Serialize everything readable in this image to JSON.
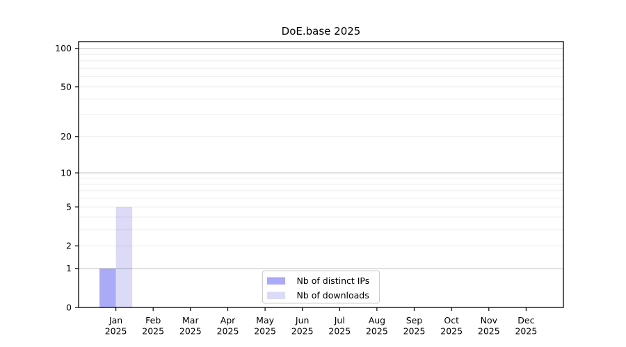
{
  "figure": {
    "title": "DoE.base 2025"
  },
  "chart_data": {
    "type": "bar",
    "title": "DoE.base 2025",
    "categories": [
      "Jan 2025",
      "Feb 2025",
      "Mar 2025",
      "Apr 2025",
      "May 2025",
      "Jun 2025",
      "Jul 2025",
      "Aug 2025",
      "Sep 2025",
      "Oct 2025",
      "Nov 2025",
      "Dec 2025"
    ],
    "series": [
      {
        "name": "Nb of distinct IPs",
        "color": "#aaaaf7",
        "values": [
          1,
          0,
          0,
          0,
          0,
          0,
          0,
          0,
          0,
          0,
          0,
          0
        ]
      },
      {
        "name": "Nb of downloads",
        "color": "#dbdbf8",
        "values": [
          5,
          0,
          0,
          0,
          0,
          0,
          0,
          0,
          0,
          0,
          0,
          0
        ]
      }
    ],
    "xlabel": "",
    "ylabel": "",
    "yscale": "log1p",
    "ylim": [
      0,
      113
    ],
    "yticks": [
      0,
      1,
      2,
      5,
      10,
      20,
      50,
      100
    ],
    "grid": {
      "major": [
        1,
        10,
        100
      ],
      "minor": [
        2,
        3,
        4,
        5,
        6,
        7,
        8,
        9,
        20,
        30,
        40,
        50,
        60,
        70,
        80,
        90
      ]
    },
    "legend": {
      "position": "lower center",
      "entries": [
        "Nb of distinct IPs",
        "Nb of downloads"
      ]
    }
  },
  "colors": {
    "distinct_ips_bar": "#aaaaf7",
    "downloads_bar": "#dbdbf8",
    "grid_major": "rgba(0,0,0,0.21)",
    "grid_minor": "rgba(0,0,0,0.075)",
    "axis": "#000000",
    "legend_border": "#cccccc",
    "background": "#ffffff"
  }
}
